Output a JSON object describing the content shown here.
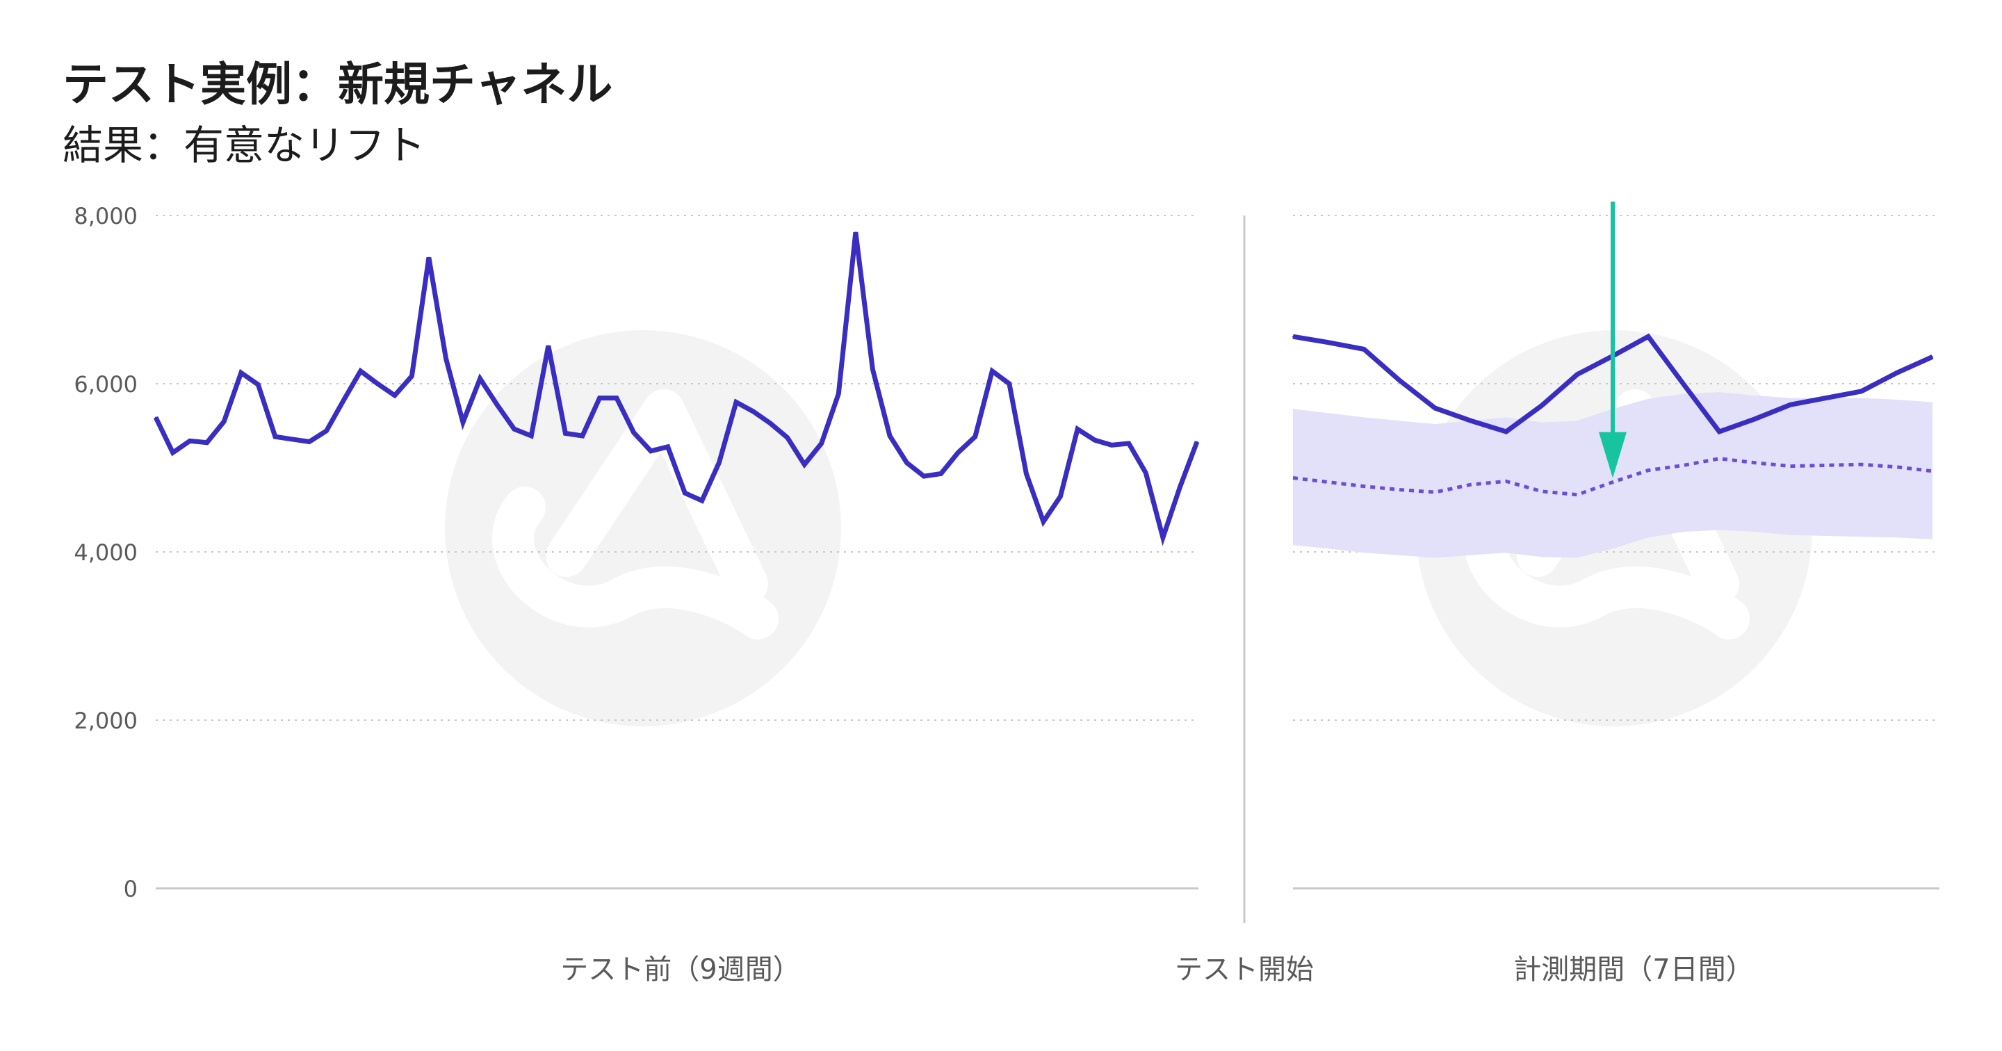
{
  "title": "テスト実例：新規チャネル",
  "subtitle": "結果：有意なリフト",
  "colors": {
    "actual": "#3a2ec2",
    "forecast": "#6a4fd6",
    "band": "#e3e0fa",
    "arrow": "#16c4a0",
    "grid": "#c8c8c8",
    "axis": "#c9c9c9",
    "text": "#5a5a5a",
    "watermark": "#f3f3f3"
  },
  "icons": {
    "watermark": "logo-watermark-icon",
    "arrow": "arrow-down-icon"
  },
  "chart_data": {
    "type": "line",
    "title": "テスト実例：新規チャネル",
    "subtitle": "結果：有意なリフト",
    "ylim": [
      0,
      8000
    ],
    "yticks": [
      {
        "value": 0,
        "label": "0"
      },
      {
        "value": 2000,
        "label": "2,000"
      },
      {
        "value": 4000,
        "label": "4,000"
      },
      {
        "value": 6000,
        "label": "6,000"
      },
      {
        "value": 8000,
        "label": "8,000"
      }
    ],
    "grid": true,
    "x_labels": {
      "pre": "テスト前（9週間）",
      "start": "テスト開始",
      "post": "計測期間（7日間）"
    },
    "pre_period": {
      "values": [
        5600,
        5180,
        5320,
        5300,
        5550,
        6130,
        5990,
        5370,
        5340,
        5310,
        5440,
        5800,
        6150,
        6000,
        5860,
        6090,
        7500,
        6300,
        5540,
        6060,
        5750,
        5460,
        5380,
        6450,
        5410,
        5380,
        5830,
        5830,
        5420,
        5200,
        5250,
        4700,
        4610,
        5060,
        5780,
        5670,
        5530,
        5360,
        5040,
        5290,
        5880,
        7800,
        6170,
        5380,
        5060,
        4900,
        4930,
        5180,
        5370,
        6150,
        6000,
        4930,
        4360,
        4660,
        5460,
        5330,
        5270,
        5290,
        4940,
        4170,
        4770,
        5310
      ]
    },
    "post_period": {
      "actual": [
        6560,
        6490,
        6410,
        6040,
        5710,
        5560,
        5430,
        5740,
        6110,
        6330,
        6560,
        5990,
        5430,
        5580,
        5750,
        5830,
        5910,
        6130,
        6320
      ],
      "forecast": [
        4880,
        4830,
        4780,
        4740,
        4710,
        4800,
        4840,
        4720,
        4680,
        4830,
        4970,
        5030,
        5110,
        5060,
        5020,
        5030,
        5040,
        5010,
        4960
      ],
      "band_upper": [
        5700,
        5650,
        5600,
        5560,
        5520,
        5560,
        5600,
        5540,
        5560,
        5700,
        5820,
        5880,
        5900,
        5860,
        5830,
        5830,
        5830,
        5810,
        5780
      ],
      "band_lower": [
        4080,
        4040,
        3990,
        3960,
        3930,
        3960,
        3990,
        3940,
        3930,
        4040,
        4170,
        4240,
        4260,
        4240,
        4200,
        4190,
        4180,
        4170,
        4150
      ]
    },
    "arrow": {
      "index": 9,
      "from_value": 8200,
      "to_value": 4830
    }
  }
}
